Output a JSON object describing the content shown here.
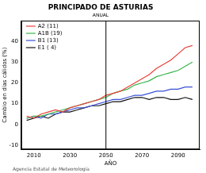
{
  "chart_data": {
    "type": "line",
    "title": "PRINCIPADO DE ASTURIAS",
    "subtitle": "ANUAL",
    "x_label": "AÑO",
    "y_label": "Cambio en días cálidos (%)",
    "credit": "Agencia Estatal de Meteorología",
    "x": [
      2006,
      2010,
      2014,
      2018,
      2022,
      2026,
      2030,
      2034,
      2038,
      2042,
      2046,
      2050,
      2054,
      2058,
      2062,
      2066,
      2070,
      2074,
      2078,
      2082,
      2086,
      2090,
      2094,
      2098
    ],
    "series": [
      {
        "name": "A2 (11)",
        "color": "#e8413a",
        "values": [
          4,
          3,
          5,
          6,
          7,
          6,
          8,
          9,
          10,
          11,
          12,
          14,
          15,
          16,
          18,
          20,
          22,
          24,
          27,
          29,
          31,
          34,
          37,
          38
        ]
      },
      {
        "name": "A1B (19)",
        "color": "#3cb44b",
        "values": [
          3,
          4,
          4,
          5,
          6,
          7,
          8,
          9,
          10,
          11,
          12,
          13,
          15,
          16,
          17,
          19,
          20,
          21,
          23,
          24,
          25,
          26,
          28,
          30
        ]
      },
      {
        "name": "B1 (13)",
        "color": "#3a50d8",
        "values": [
          3,
          4,
          3,
          5,
          5,
          6,
          7,
          8,
          8,
          9,
          10,
          11,
          12,
          12,
          13,
          14,
          14,
          15,
          16,
          16,
          17,
          17,
          18,
          18
        ]
      },
      {
        "name": "E1 ( 4)",
        "color": "#111111",
        "values": [
          2,
          3,
          4,
          3,
          5,
          6,
          6,
          7,
          8,
          9,
          9,
          10,
          11,
          11,
          12,
          13,
          13,
          12,
          13,
          13,
          12,
          12,
          13,
          12
        ]
      }
    ],
    "vline": 2050,
    "xlim": [
      2003,
      2102
    ],
    "xticks": [
      2010,
      2030,
      2050,
      2070,
      2090
    ],
    "ylim": [
      -12,
      50
    ],
    "yticks": [
      -10,
      0,
      10,
      20,
      30,
      40
    ],
    "legend": "upper left",
    "grid": false
  }
}
